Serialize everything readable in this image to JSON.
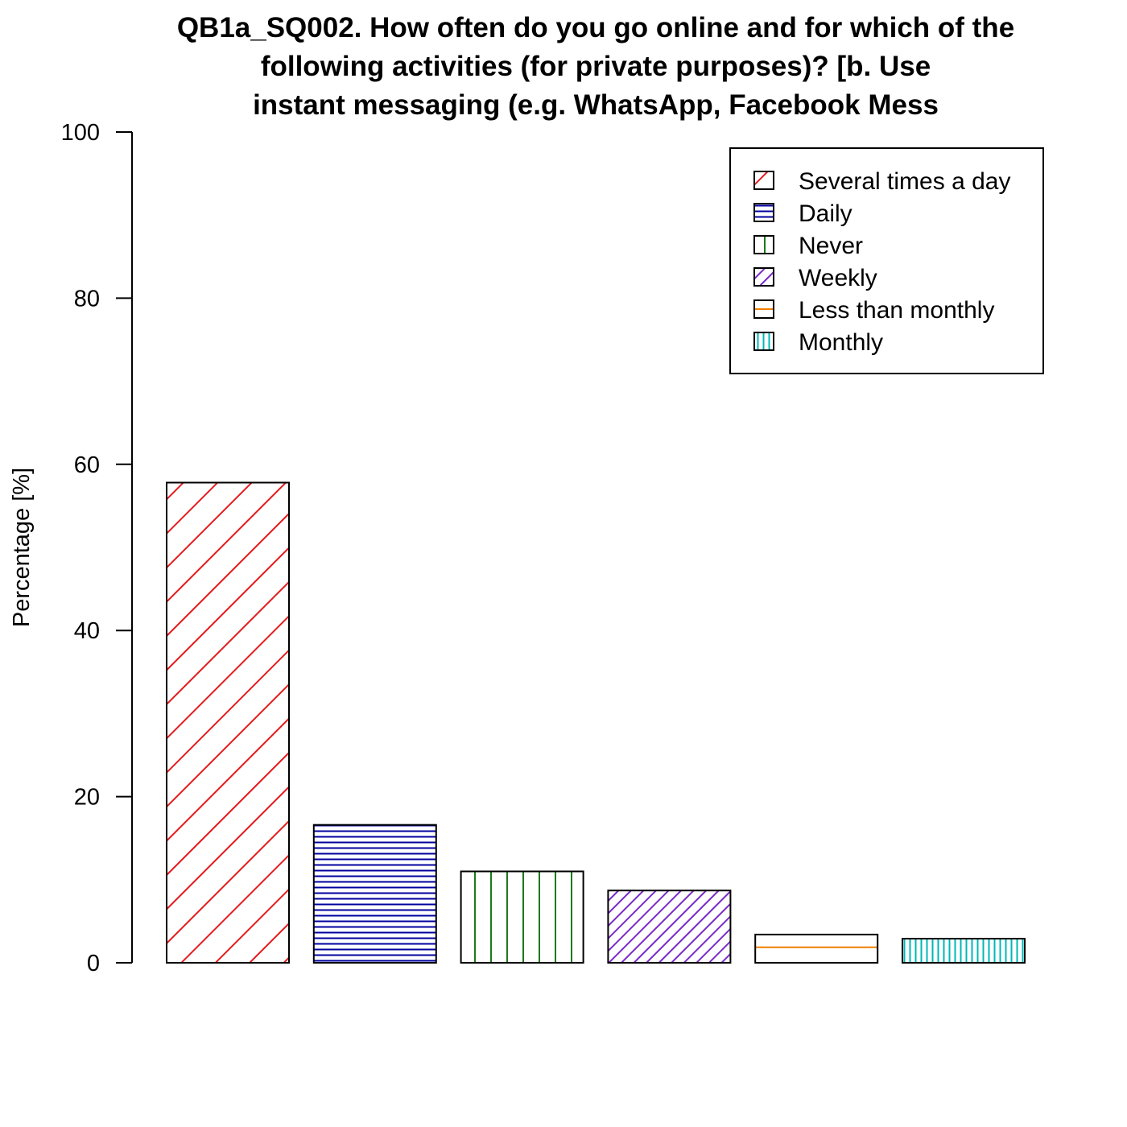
{
  "chart_data": {
    "type": "bar",
    "title_lines": [
      "QB1a_SQ002. How often do you go online and for which of the",
      "following activities (for private purposes)? [b. Use",
      "instant messaging (e.g. WhatsApp, Facebook Mess"
    ],
    "ylabel": "Percentage [%]",
    "xlabel": "",
    "ylim": [
      0,
      100
    ],
    "yticks": [
      "0",
      "20",
      "40",
      "60",
      "80",
      "100"
    ],
    "grid": false,
    "legend_position": "top-right",
    "categories": [
      "Several times a day",
      "Daily",
      "Never",
      "Weekly",
      "Less than monthly",
      "Monthly"
    ],
    "values": [
      57.8,
      16.6,
      11.0,
      8.7,
      3.4,
      2.9
    ],
    "colors": [
      "#e41a1c",
      "#0000a0",
      "#1a7a1a",
      "#7a2ac8",
      "#f07f00",
      "#00b7b7"
    ],
    "fill_patterns": [
      "diagonal-45-wide",
      "horizontal-dense",
      "vertical-wide",
      "diagonal-45-dense",
      "horizontal-wide",
      "vertical-dense"
    ]
  }
}
